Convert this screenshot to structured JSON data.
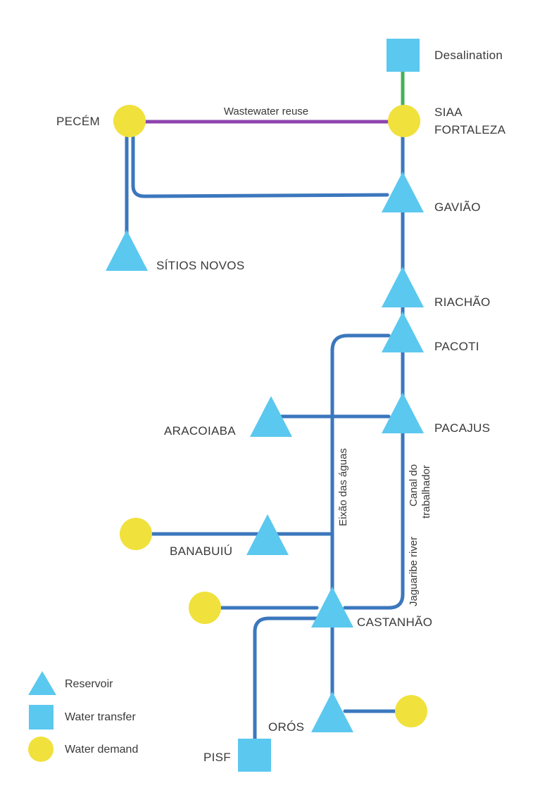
{
  "colors": {
    "pipe": "#3b77bd",
    "reservoir": "#5bc8ef",
    "transfer": "#5bc8ef",
    "demand": "#f0e13c",
    "wastewater": "#8e44ad",
    "desalination_link": "#45b058"
  },
  "nodes": {
    "desalination": {
      "label": "Desalination",
      "type": "water-transfer"
    },
    "siaa_fortaleza": {
      "label_line1": "SIAA",
      "label_line2": "FORTALEZA",
      "type": "water-demand"
    },
    "pecem": {
      "label": "PECÉM",
      "type": "water-demand"
    },
    "gaviao": {
      "label": "GAVIÃO",
      "type": "reservoir"
    },
    "sitios_novos": {
      "label": "SÍTIOS NOVOS",
      "type": "reservoir"
    },
    "riachao": {
      "label": "RIACHÃO",
      "type": "reservoir"
    },
    "pacoti": {
      "label": "PACOTI",
      "type": "reservoir"
    },
    "aracoiaba": {
      "label": "ARACOIABA",
      "type": "reservoir"
    },
    "pacajus": {
      "label": "PACAJUS",
      "type": "reservoir"
    },
    "banabuiu": {
      "label": "BANABUIÚ",
      "type": "reservoir"
    },
    "castanhao": {
      "label": "CASTANHÃO",
      "type": "reservoir"
    },
    "oros": {
      "label": "ORÓS",
      "type": "reservoir"
    },
    "pisf": {
      "label": "PISF",
      "type": "water-transfer"
    }
  },
  "edges": {
    "wastewater_reuse": "Wastewater reuse",
    "eixao": "Eixão das águas",
    "canal_line1": "Canal do",
    "canal_line2": "trabalhador",
    "jaguaribe": "Jaguaribe river"
  },
  "legend": {
    "reservoir": "Reservoir",
    "water_transfer": "Water transfer",
    "water_demand": "Water demand"
  }
}
